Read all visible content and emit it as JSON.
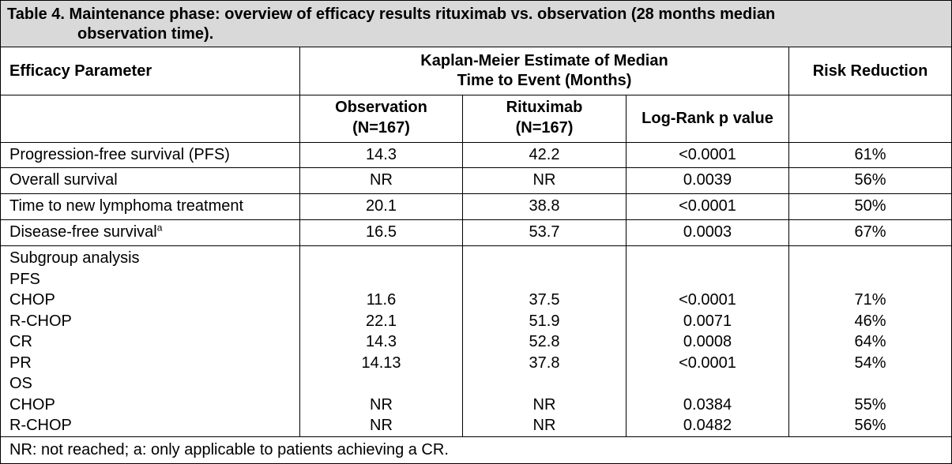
{
  "title_line1": "Table 4. Maintenance phase: overview of efficacy results rituximab vs. observation (28 months median",
  "title_line2": "observation time).",
  "headers": {
    "efficacy_parameter": "Efficacy Parameter",
    "km_line1": "Kaplan-Meier Estimate of Median",
    "km_line2": "Time to Event (Months)",
    "risk_reduction": "Risk Reduction",
    "observation_line1": "Observation",
    "observation_line2": "(N=167)",
    "rituximab_line1": "Rituximab",
    "rituximab_line2": "(N=167)",
    "logrank": "Log-Rank p value"
  },
  "rows": [
    {
      "param": "Progression-free survival (PFS)",
      "obs": "14.3",
      "rit": "42.2",
      "p": "<0.0001",
      "rr": "61%"
    },
    {
      "param": "Overall survival",
      "obs": "NR",
      "rit": "NR",
      "p": "0.0039",
      "rr": "56%"
    },
    {
      "param": "Time to new lymphoma treatment",
      "obs": "20.1",
      "rit": "38.8",
      "p": "<0.0001",
      "rr": "50%"
    },
    {
      "param": "Disease-free survival",
      "param_sup": "a",
      "obs": "16.5",
      "rit": "53.7",
      "p": "0.0003",
      "rr": "67%"
    }
  ],
  "subgroup": {
    "labels": [
      "Subgroup analysis",
      "PFS",
      "CHOP",
      "R-CHOP",
      "CR",
      "PR",
      "OS",
      "CHOP",
      "R-CHOP"
    ],
    "obs": [
      "",
      "",
      "11.6",
      "22.1",
      "14.3",
      "14.13",
      "",
      "NR",
      "NR"
    ],
    "rit": [
      "",
      "",
      "37.5",
      "51.9",
      "52.8",
      "37.8",
      "",
      "NR",
      "NR"
    ],
    "p": [
      "",
      "",
      "<0.0001",
      "0.0071",
      "0.0008",
      "<0.0001",
      "",
      "0.0384",
      "0.0482"
    ],
    "rr": [
      "",
      "",
      "71%",
      "46%",
      "64%",
      "54%",
      "",
      "55%",
      "56%"
    ]
  },
  "footnote": "NR: not reached; a: only applicable to patients achieving a CR."
}
